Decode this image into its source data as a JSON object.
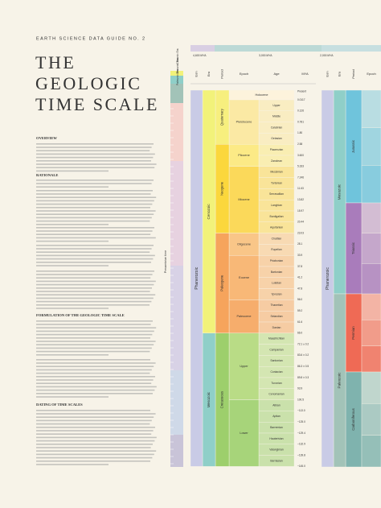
{
  "header": {
    "series": "EARTH SCIENCE DATA GUIDE NO. 2",
    "title_lines": [
      "THE",
      "GEOLOGIC",
      "TIME SCALE"
    ]
  },
  "sections": [
    "OVERVIEW",
    "RATIONALE",
    "FORMULATION OF THE GEOLOGIC TIME SCALE",
    "DATING OF TIME SCALES"
  ],
  "timeline": {
    "labels": [
      "4,600 MYA",
      "3,000 MYA",
      "2,000 MYA"
    ]
  },
  "sidebar": {
    "labels": [
      "Cenozoic Era",
      "Mesozoic Era",
      "Paleozoic Era",
      "Precambrian time"
    ]
  },
  "table": {
    "headers": [
      "Eon",
      "Era",
      "Period",
      "Epoch",
      "Age",
      "MYA"
    ],
    "present": "Present",
    "eon": {
      "name": "Phanerozoic",
      "color": "#c9cbe6"
    },
    "eras": [
      {
        "name": "Cenozoic",
        "color": "#f2f27a",
        "periods": [
          {
            "name": "Quaternary",
            "color": "#f7ef7e",
            "epochs": [
              {
                "name": "Holocene",
                "color": "#fdf3dc",
                "mya": "0.0117",
                "ages": []
              },
              {
                "name": "Pleistocene",
                "color": "#fbe9a4",
                "ages": [
                  {
                    "name": "Upper",
                    "mya": "0.126"
                  },
                  {
                    "name": "Middle",
                    "mya": "0.781"
                  },
                  {
                    "name": "Calabrian",
                    "mya": "1.80"
                  },
                  {
                    "name": "Gelasian",
                    "mya": "2.58"
                  }
                ]
              }
            ]
          },
          {
            "name": "Neogene",
            "color": "#fbd73c",
            "epochs": [
              {
                "name": "Pliocene",
                "color": "#fcea86",
                "ages": [
                  {
                    "name": "Piacenzian",
                    "mya": "3.600"
                  },
                  {
                    "name": "Zanclean",
                    "mya": "5.333"
                  }
                ]
              },
              {
                "name": "Miocene",
                "color": "#fbd95a",
                "ages": [
                  {
                    "name": "Messinian",
                    "mya": "7.246"
                  },
                  {
                    "name": "Tortonian",
                    "mya": "11.63"
                  },
                  {
                    "name": "Serravallian",
                    "mya": "13.82"
                  },
                  {
                    "name": "Langhian",
                    "mya": "15.97"
                  },
                  {
                    "name": "Burdigalian",
                    "mya": "20.44"
                  },
                  {
                    "name": "Aquitanian",
                    "mya": "23.03"
                  }
                ]
              }
            ]
          },
          {
            "name": "Paleogene",
            "color": "#f6a45c",
            "epochs": [
              {
                "name": "Oligocene",
                "color": "#f9c688",
                "ages": [
                  {
                    "name": "Chattian",
                    "mya": "28.1"
                  },
                  {
                    "name": "Rupelian",
                    "mya": "33.9"
                  }
                ]
              },
              {
                "name": "Eocene",
                "color": "#f8b877",
                "ages": [
                  {
                    "name": "Priabonian",
                    "mya": "37.8"
                  },
                  {
                    "name": "Bartonian",
                    "mya": "41.2"
                  },
                  {
                    "name": "Lutetian",
                    "mya": "47.8"
                  },
                  {
                    "name": "Ypresian",
                    "mya": "56.0"
                  }
                ]
              },
              {
                "name": "Paleocene",
                "color": "#f6ad6c",
                "ages": [
                  {
                    "name": "Thanetian",
                    "mya": "59.2"
                  },
                  {
                    "name": "Selandian",
                    "mya": "61.6"
                  },
                  {
                    "name": "Danian",
                    "mya": "66.0"
                  }
                ]
              }
            ]
          }
        ]
      },
      {
        "name": "Mesozoic",
        "color": "#8fcfc8",
        "periods": [
          {
            "name": "Cretaceous",
            "color": "#9dcf6c",
            "epochs": [
              {
                "name": "Upper",
                "color": "#b9dc86",
                "ages": [
                  {
                    "name": "Maastrichtian",
                    "mya": "72.1 ± 0.2"
                  },
                  {
                    "name": "Campanian",
                    "mya": "83.6 ± 0.2"
                  },
                  {
                    "name": "Santonian",
                    "mya": "86.3 ± 0.5"
                  },
                  {
                    "name": "Coniacian",
                    "mya": "89.8 ± 0.3"
                  },
                  {
                    "name": "Turonian",
                    "mya": "93.9"
                  },
                  {
                    "name": "Cenomanian",
                    "mya": "100.5"
                  }
                ]
              },
              {
                "name": "Lower",
                "color": "#a7d47a",
                "ages": [
                  {
                    "name": "Albian",
                    "mya": "~113.0"
                  },
                  {
                    "name": "Aptian",
                    "mya": "~125.0"
                  },
                  {
                    "name": "Barremian",
                    "mya": "~129.4"
                  },
                  {
                    "name": "Hauterivian",
                    "mya": "~132.9"
                  },
                  {
                    "name": "Valanginian",
                    "mya": "~139.8"
                  },
                  {
                    "name": "Berriasian",
                    "mya": "~145.0"
                  }
                ]
              }
            ]
          }
        ]
      }
    ]
  },
  "table2": {
    "headers": [
      "Eon",
      "Era",
      "Period",
      "Epoch"
    ],
    "eon": {
      "name": "Phanerozoic",
      "color": "#c9cbe6"
    },
    "eras": [
      {
        "name": "Mesozoic",
        "color": "#8fcfc8",
        "periods": [
          {
            "name": "Jurassic",
            "color": "#6fc4dc"
          },
          {
            "name": "Triassic",
            "color": "#a97cbb"
          }
        ]
      },
      {
        "name": "Paleozoic",
        "color": "#a2c3b8",
        "periods": [
          {
            "name": "Permian",
            "color": "#ef6a55"
          },
          {
            "name": "Carboniferous",
            "color": "#7fb3ae"
          }
        ]
      }
    ]
  }
}
